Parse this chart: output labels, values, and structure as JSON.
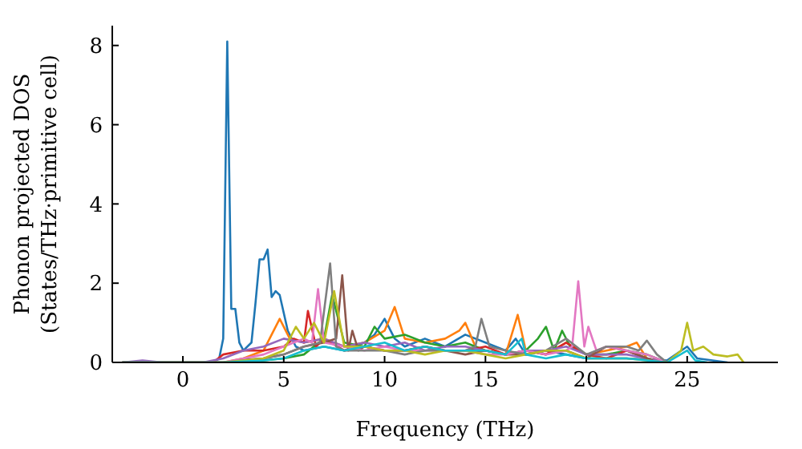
{
  "chart_data": {
    "type": "line",
    "xlabel": "Frequency (THz)",
    "ylabel": "Phonon projected DOS\n(States/THz·primitive cell)",
    "xlim": [
      -3.5,
      29.5
    ],
    "ylim": [
      0,
      8.5
    ],
    "xticks": [
      0,
      5,
      10,
      15,
      20,
      25
    ],
    "yticks": [
      0,
      2,
      4,
      6,
      8
    ],
    "grid": false,
    "legend": false,
    "marker": "none",
    "line_style": "solid",
    "series": [
      {
        "color": "#1f77b4",
        "x": [
          -3,
          1.5,
          1.8,
          2.0,
          2.2,
          2.4,
          2.6,
          2.8,
          3.0,
          3.4,
          3.6,
          3.8,
          4.0,
          4.2,
          4.4,
          4.6,
          4.8,
          5.2,
          5.6,
          6,
          7,
          8,
          9,
          9.5,
          10,
          10.5,
          11,
          12,
          13,
          14,
          15,
          16,
          16.5,
          17,
          18,
          19,
          20,
          22,
          24,
          25,
          25.5,
          27
        ],
        "values": [
          0,
          0,
          0.1,
          0.6,
          8.1,
          1.35,
          1.35,
          0.5,
          0.3,
          0.5,
          1.5,
          2.6,
          2.6,
          2.85,
          1.65,
          1.8,
          1.7,
          0.8,
          0.4,
          0.3,
          0.4,
          0.3,
          0.5,
          0.7,
          1.1,
          0.6,
          0.4,
          0.6,
          0.4,
          0.7,
          0.5,
          0.3,
          0.6,
          0.2,
          0.3,
          0.2,
          0.1,
          0.1,
          0.05,
          0.4,
          0.1,
          0
        ]
      },
      {
        "color": "#ff7f0e",
        "x": [
          -3,
          2,
          3,
          4,
          4.8,
          5.3,
          6,
          7,
          8,
          9,
          10,
          10.5,
          11,
          12,
          13,
          13.7,
          14,
          14.5,
          15,
          16,
          16.6,
          17,
          18,
          19,
          20,
          21,
          22,
          22.5,
          23,
          24
        ],
        "values": [
          0,
          0,
          0.1,
          0.3,
          1.1,
          0.6,
          0.5,
          0.6,
          0.4,
          0.5,
          0.8,
          1.4,
          0.6,
          0.5,
          0.6,
          0.8,
          1.0,
          0.4,
          0.3,
          0.2,
          1.2,
          0.3,
          0.2,
          0.5,
          0.2,
          0.3,
          0.4,
          0.5,
          0.1,
          0
        ]
      },
      {
        "color": "#2ca02c",
        "x": [
          -3,
          2,
          4,
          5,
          6,
          7,
          7.4,
          8,
          9,
          9.5,
          10,
          11,
          12,
          13,
          14,
          15,
          16,
          17,
          17.6,
          18,
          18.4,
          18.8,
          19.2,
          20,
          21,
          22,
          23,
          24
        ],
        "values": [
          0,
          0,
          0.05,
          0.1,
          0.2,
          0.6,
          1.7,
          0.5,
          0.4,
          0.9,
          0.6,
          0.7,
          0.5,
          0.4,
          0.5,
          0.3,
          0.2,
          0.3,
          0.6,
          0.9,
          0.3,
          0.8,
          0.4,
          0.2,
          0.2,
          0.3,
          0.2,
          0
        ]
      },
      {
        "color": "#d62728",
        "x": [
          -3,
          1.5,
          2,
          3,
          4,
          5,
          5.5,
          6,
          6.2,
          6.6,
          7,
          8,
          9,
          10,
          11,
          12,
          13,
          14,
          15,
          16,
          17,
          18,
          19,
          20,
          21,
          22,
          23,
          24
        ],
        "values": [
          0,
          0,
          0.2,
          0.3,
          0.3,
          0.4,
          0.6,
          0.5,
          1.3,
          0.4,
          0.6,
          0.3,
          0.4,
          0.3,
          0.3,
          0.4,
          0.3,
          0.3,
          0.4,
          0.2,
          0.3,
          0.2,
          0.5,
          0.2,
          0.1,
          0.3,
          0.1,
          0
        ]
      },
      {
        "color": "#9467bd",
        "x": [
          -3,
          -2,
          -1,
          1,
          2,
          3,
          4,
          5,
          6,
          7,
          8,
          9,
          10,
          11,
          12,
          13,
          14,
          15,
          16,
          17,
          18,
          19,
          20,
          21,
          22,
          23,
          24
        ],
        "values": [
          0,
          0.05,
          0,
          0,
          0.1,
          0.3,
          0.4,
          0.6,
          0.5,
          0.6,
          0.4,
          0.5,
          0.4,
          0.5,
          0.3,
          0.4,
          0.4,
          0.3,
          0.2,
          0.3,
          0.3,
          0.4,
          0.2,
          0.2,
          0.2,
          0.1,
          0
        ]
      },
      {
        "color": "#8c564b",
        "x": [
          2.5,
          4,
          5,
          6,
          7,
          7.6,
          7.9,
          8.2,
          8.4,
          8.7,
          9,
          10,
          11,
          12,
          13,
          14,
          15,
          16,
          17,
          18,
          19,
          20,
          21,
          22,
          23.3
        ],
        "values": [
          0.05,
          0.1,
          0.2,
          0.4,
          0.5,
          0.6,
          2.2,
          0.3,
          0.8,
          0.3,
          0.4,
          0.3,
          0.3,
          0.4,
          0.3,
          0.2,
          0.3,
          0.2,
          0.2,
          0.3,
          0.3,
          0.1,
          0.4,
          0.3,
          0.05
        ]
      },
      {
        "color": "#e377c2",
        "x": [
          -3,
          2,
          4,
          5,
          6,
          6.4,
          6.7,
          7,
          8,
          9,
          10,
          11,
          12,
          13,
          14,
          15,
          16,
          17,
          18,
          19,
          19.3,
          19.6,
          19.9,
          20.1,
          20.5,
          21,
          22,
          23,
          24
        ],
        "values": [
          0,
          0,
          0.2,
          0.4,
          0.6,
          0.5,
          1.85,
          0.5,
          0.4,
          0.3,
          0.4,
          0.3,
          0.3,
          0.3,
          0.3,
          0.2,
          0.2,
          0.3,
          0.2,
          0.3,
          0.4,
          2.05,
          0.4,
          0.9,
          0.3,
          0.4,
          0.3,
          0.2,
          0
        ]
      },
      {
        "color": "#7f7f7f",
        "x": [
          -3,
          2,
          4,
          5,
          6,
          6.8,
          7.3,
          7.6,
          8,
          9,
          10,
          11,
          12,
          13,
          14,
          14.5,
          14.8,
          15.2,
          16,
          17,
          18,
          19,
          20,
          21,
          22,
          22.6,
          23,
          23.5,
          24
        ],
        "values": [
          0,
          0,
          0.1,
          0.2,
          0.4,
          0.5,
          2.5,
          0.4,
          0.3,
          0.3,
          0.3,
          0.2,
          0.3,
          0.3,
          0.3,
          0.4,
          1.1,
          0.4,
          0.3,
          0.2,
          0.3,
          0.6,
          0.2,
          0.4,
          0.4,
          0.3,
          0.55,
          0.2,
          0
        ]
      },
      {
        "color": "#bcbd22",
        "x": [
          -3,
          2,
          4,
          5,
          5.6,
          6,
          6.5,
          7,
          7.5,
          8,
          9,
          10,
          11,
          12,
          13,
          14,
          15,
          16,
          17,
          18,
          19,
          20,
          21,
          22,
          24,
          24.7,
          25,
          25.3,
          25.8,
          26.3,
          27,
          27.5,
          27.8
        ],
        "values": [
          0,
          0,
          0.1,
          0.3,
          0.9,
          0.6,
          1.0,
          0.5,
          1.8,
          0.4,
          0.4,
          0.3,
          0.3,
          0.2,
          0.3,
          0.3,
          0.2,
          0.1,
          0.2,
          0.3,
          0.3,
          0.1,
          0.1,
          0.1,
          0,
          0.3,
          1.0,
          0.3,
          0.4,
          0.2,
          0.15,
          0.2,
          0
        ]
      },
      {
        "color": "#17becf",
        "x": [
          -3,
          2,
          4,
          5,
          6,
          7,
          8,
          9,
          10,
          11,
          12,
          13,
          14,
          15,
          16,
          16.8,
          17,
          18,
          19,
          20,
          21,
          22,
          24,
          25,
          25.4,
          26
        ],
        "values": [
          0,
          0,
          0.05,
          0.1,
          0.3,
          0.4,
          0.3,
          0.4,
          0.5,
          0.3,
          0.4,
          0.3,
          0.3,
          0.3,
          0.2,
          0.6,
          0.2,
          0.1,
          0.2,
          0.1,
          0.1,
          0.1,
          0,
          0.3,
          0.05,
          0
        ]
      }
    ]
  }
}
